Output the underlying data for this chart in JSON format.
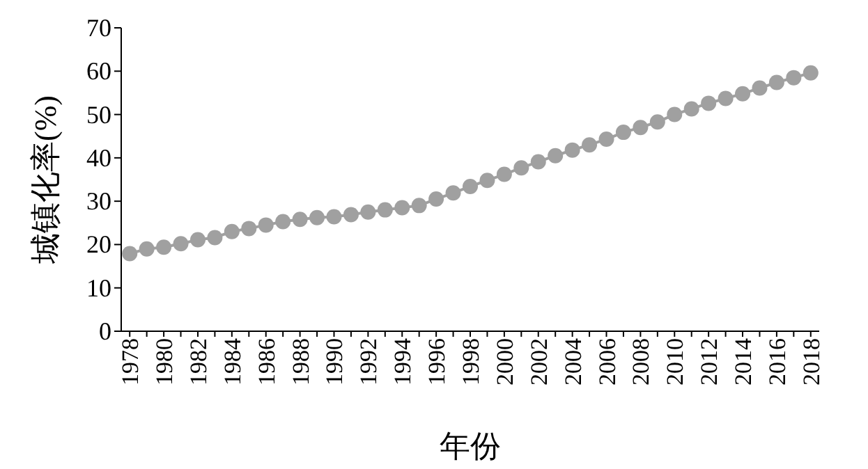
{
  "chart_data": {
    "type": "line",
    "xlabel": "年份",
    "ylabel": "城镇化率(%)",
    "categories": [
      "1978",
      null,
      "1980",
      null,
      "1982",
      null,
      "1984",
      null,
      "1986",
      null,
      "1988",
      null,
      "1990",
      null,
      "1992",
      null,
      "1994",
      null,
      "1996",
      null,
      "1998",
      null,
      "2000",
      null,
      "2002",
      null,
      "2004",
      null,
      "2006",
      null,
      "2008",
      null,
      "2010",
      null,
      "2012",
      null,
      "2014",
      null,
      "2016",
      null,
      "2018"
    ],
    "series": [
      {
        "color": "#a0a0a0",
        "values": [
          17.9,
          19.0,
          19.4,
          20.2,
          21.1,
          21.6,
          23.0,
          23.7,
          24.5,
          25.3,
          25.8,
          26.2,
          26.4,
          26.9,
          27.5,
          28.0,
          28.5,
          29.0,
          30.5,
          31.9,
          33.4,
          34.8,
          36.2,
          37.7,
          39.1,
          40.5,
          41.8,
          43.0,
          44.3,
          45.9,
          47.0,
          48.3,
          50.0,
          51.3,
          52.6,
          53.7,
          54.8,
          56.1,
          57.4,
          58.5,
          59.6
        ]
      }
    ],
    "marker": "circle",
    "ylim": [
      0,
      70
    ],
    "yticks": [
      0,
      10,
      20,
      30,
      40,
      50,
      60,
      70
    ]
  }
}
